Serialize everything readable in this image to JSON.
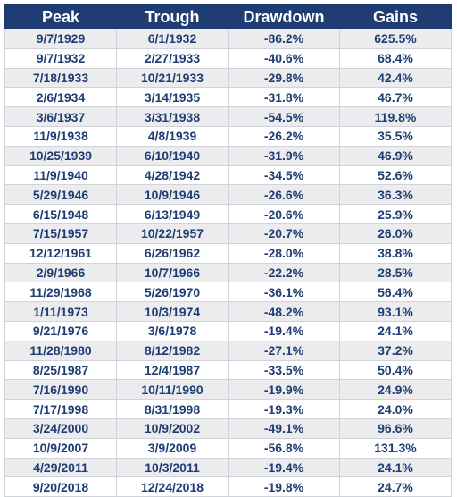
{
  "table": {
    "headers": [
      "Peak",
      "Trough",
      "Drawdown",
      "Gains"
    ],
    "rows": [
      [
        "9/7/1929",
        "6/1/1932",
        "-86.2%",
        "625.5%"
      ],
      [
        "9/7/1932",
        "2/27/1933",
        "-40.6%",
        "68.4%"
      ],
      [
        "7/18/1933",
        "10/21/1933",
        "-29.8%",
        "42.4%"
      ],
      [
        "2/6/1934",
        "3/14/1935",
        "-31.8%",
        "46.7%"
      ],
      [
        "3/6/1937",
        "3/31/1938",
        "-54.5%",
        "119.8%"
      ],
      [
        "11/9/1938",
        "4/8/1939",
        "-26.2%",
        "35.5%"
      ],
      [
        "10/25/1939",
        "6/10/1940",
        "-31.9%",
        "46.9%"
      ],
      [
        "11/9/1940",
        "4/28/1942",
        "-34.5%",
        "52.6%"
      ],
      [
        "5/29/1946",
        "10/9/1946",
        "-26.6%",
        "36.3%"
      ],
      [
        "6/15/1948",
        "6/13/1949",
        "-20.6%",
        "25.9%"
      ],
      [
        "7/15/1957",
        "10/22/1957",
        "-20.7%",
        "26.0%"
      ],
      [
        "12/12/1961",
        "6/26/1962",
        "-28.0%",
        "38.8%"
      ],
      [
        "2/9/1966",
        "10/7/1966",
        "-22.2%",
        "28.5%"
      ],
      [
        "11/29/1968",
        "5/26/1970",
        "-36.1%",
        "56.4%"
      ],
      [
        "1/11/1973",
        "10/3/1974",
        "-48.2%",
        "93.1%"
      ],
      [
        "9/21/1976",
        "3/6/1978",
        "-19.4%",
        "24.1%"
      ],
      [
        "11/28/1980",
        "8/12/1982",
        "-27.1%",
        "37.2%"
      ],
      [
        "8/25/1987",
        "12/4/1987",
        "-33.5%",
        "50.4%"
      ],
      [
        "7/16/1990",
        "10/11/1990",
        "-19.9%",
        "24.9%"
      ],
      [
        "7/17/1998",
        "8/31/1998",
        "-19.3%",
        "24.0%"
      ],
      [
        "3/24/2000",
        "10/9/2002",
        "-49.1%",
        "96.6%"
      ],
      [
        "10/9/2007",
        "3/9/2009",
        "-56.8%",
        "131.3%"
      ],
      [
        "4/29/2011",
        "10/3/2011",
        "-19.4%",
        "24.1%"
      ],
      [
        "9/20/2018",
        "12/24/2018",
        "-19.8%",
        "24.7%"
      ]
    ]
  },
  "colors": {
    "header_bg": "#1f3d73",
    "header_text": "#ffffff",
    "cell_text": "#1f3d73",
    "row_shade": "#ececee",
    "row_plain": "#ffffff"
  }
}
